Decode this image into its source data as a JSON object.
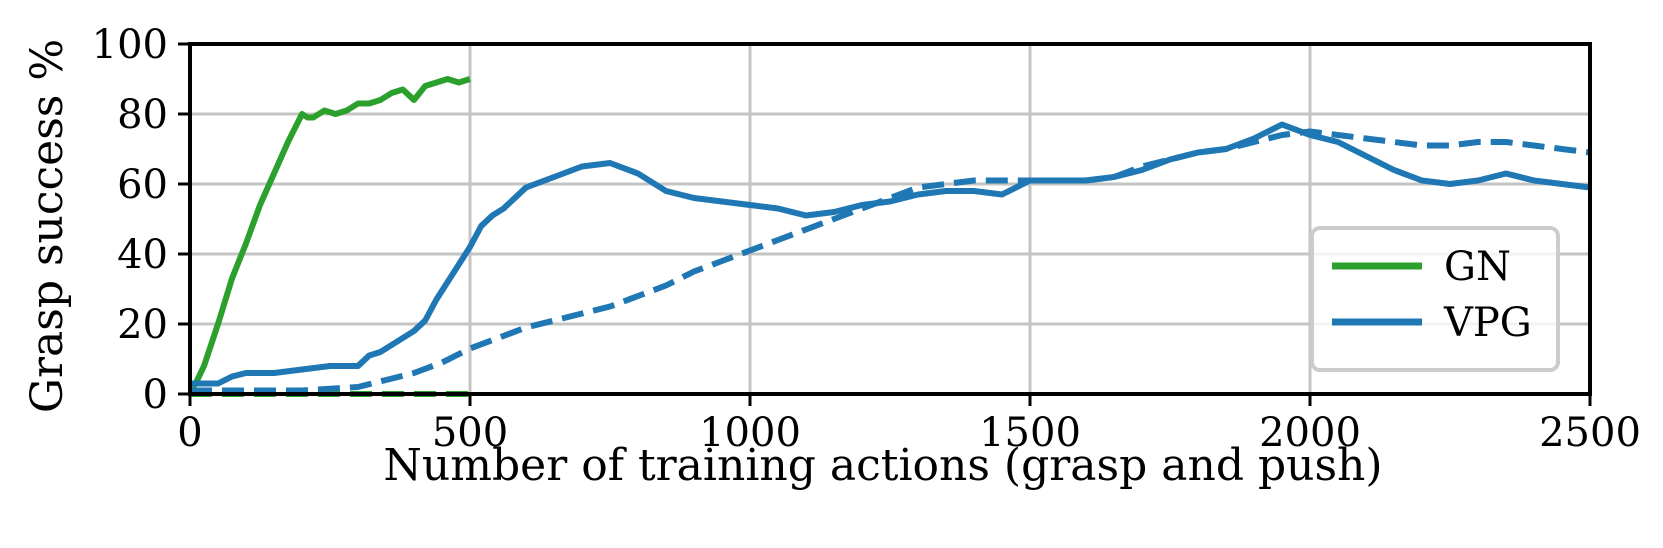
{
  "chart_data": {
    "type": "line",
    "title": "",
    "xlabel": "Number of training actions (grasp and push)",
    "ylabel": "Grasp success %",
    "xlim": [
      0,
      2500
    ],
    "ylim": [
      0,
      100
    ],
    "xticks": [
      0,
      500,
      1000,
      1500,
      2000,
      2500
    ],
    "yticks": [
      0,
      20,
      40,
      60,
      80,
      100
    ],
    "xtick_labels": [
      "0",
      "500",
      "1000",
      "1500",
      "2000",
      "2500"
    ],
    "ytick_labels": [
      "0",
      "20",
      "40",
      "60",
      "80",
      "100"
    ],
    "grid": true,
    "legend_position": "lower-right",
    "legend": [
      {
        "label": "GN",
        "color": "#2ca02c"
      },
      {
        "label": "VPG",
        "color": "#1f77b4"
      }
    ],
    "series": [
      {
        "name": "GN",
        "color": "#2ca02c",
        "style": "solid",
        "x": [
          0,
          10,
          25,
          50,
          75,
          100,
          125,
          150,
          175,
          200,
          210,
          220,
          240,
          260,
          280,
          300,
          320,
          340,
          360,
          380,
          400,
          420,
          440,
          460,
          480,
          500
        ],
        "y": [
          1,
          3,
          8,
          20,
          33,
          43,
          54,
          63,
          72,
          80,
          79,
          79,
          81,
          80,
          81,
          83,
          83,
          84,
          86,
          87,
          84,
          88,
          89,
          90,
          89,
          90
        ]
      },
      {
        "name": "GN",
        "color": "#2ca02c",
        "style": "dashed",
        "x": [
          0,
          100,
          200,
          300,
          400,
          500
        ],
        "y": [
          0,
          0,
          0,
          0,
          0,
          0
        ]
      },
      {
        "name": "VPG",
        "color": "#1f77b4",
        "style": "solid",
        "x": [
          0,
          50,
          75,
          100,
          150,
          200,
          250,
          300,
          320,
          340,
          360,
          380,
          400,
          420,
          440,
          460,
          480,
          500,
          520,
          540,
          560,
          600,
          650,
          700,
          750,
          800,
          850,
          900,
          950,
          1000,
          1050,
          1100,
          1150,
          1200,
          1250,
          1300,
          1350,
          1400,
          1450,
          1500,
          1550,
          1600,
          1650,
          1700,
          1750,
          1800,
          1850,
          1900,
          1950,
          2000,
          2050,
          2100,
          2150,
          2200,
          2250,
          2300,
          2350,
          2400,
          2450,
          2500
        ],
        "y": [
          3,
          3,
          5,
          6,
          6,
          7,
          8,
          8,
          11,
          12,
          14,
          16,
          18,
          21,
          27,
          32,
          37,
          42,
          48,
          51,
          53,
          59,
          62,
          65,
          66,
          63,
          58,
          56,
          55,
          54,
          53,
          51,
          52,
          54,
          55,
          57,
          58,
          58,
          57,
          61,
          61,
          61,
          62,
          64,
          67,
          69,
          70,
          73,
          77,
          74,
          72,
          68,
          64,
          61,
          60,
          61,
          63,
          61,
          60,
          59
        ]
      },
      {
        "name": "VPG",
        "color": "#1f77b4",
        "style": "dashed",
        "x": [
          0,
          100,
          200,
          300,
          350,
          400,
          450,
          500,
          550,
          600,
          650,
          700,
          750,
          800,
          850,
          900,
          950,
          1000,
          1050,
          1100,
          1150,
          1200,
          1250,
          1300,
          1350,
          1400,
          1450,
          1500,
          1550,
          1600,
          1650,
          1700,
          1750,
          1800,
          1850,
          1900,
          1950,
          2000,
          2050,
          2100,
          2150,
          2200,
          2250,
          2300,
          2350,
          2400,
          2450,
          2500
        ],
        "y": [
          1,
          1,
          1,
          2,
          4,
          6,
          9,
          13,
          16,
          19,
          21,
          23,
          25,
          28,
          31,
          35,
          38,
          41,
          44,
          47,
          50,
          53,
          56,
          59,
          60,
          61,
          61,
          61,
          61,
          61,
          62,
          65,
          67,
          69,
          70,
          72,
          74,
          75,
          74,
          73,
          72,
          71,
          71,
          72,
          72,
          71,
          70,
          69
        ]
      }
    ]
  }
}
